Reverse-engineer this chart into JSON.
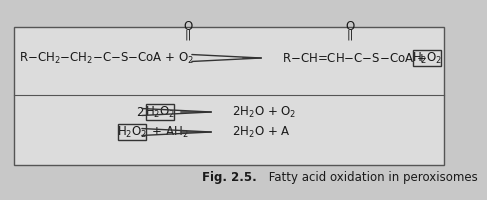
{
  "bg_outer": "#c8c8c8",
  "bg_panel": "#dcdcdc",
  "border_color": "#555555",
  "divider_color": "#555555",
  "text_color": "#1a1a1a",
  "arrow_color": "#333333",
  "box_border": "#333333",
  "caption_text": "Fig. 2.5.  Fatty acid oxidation in peroxisomes",
  "font_size": 8.5,
  "caption_font_size": 8.5
}
